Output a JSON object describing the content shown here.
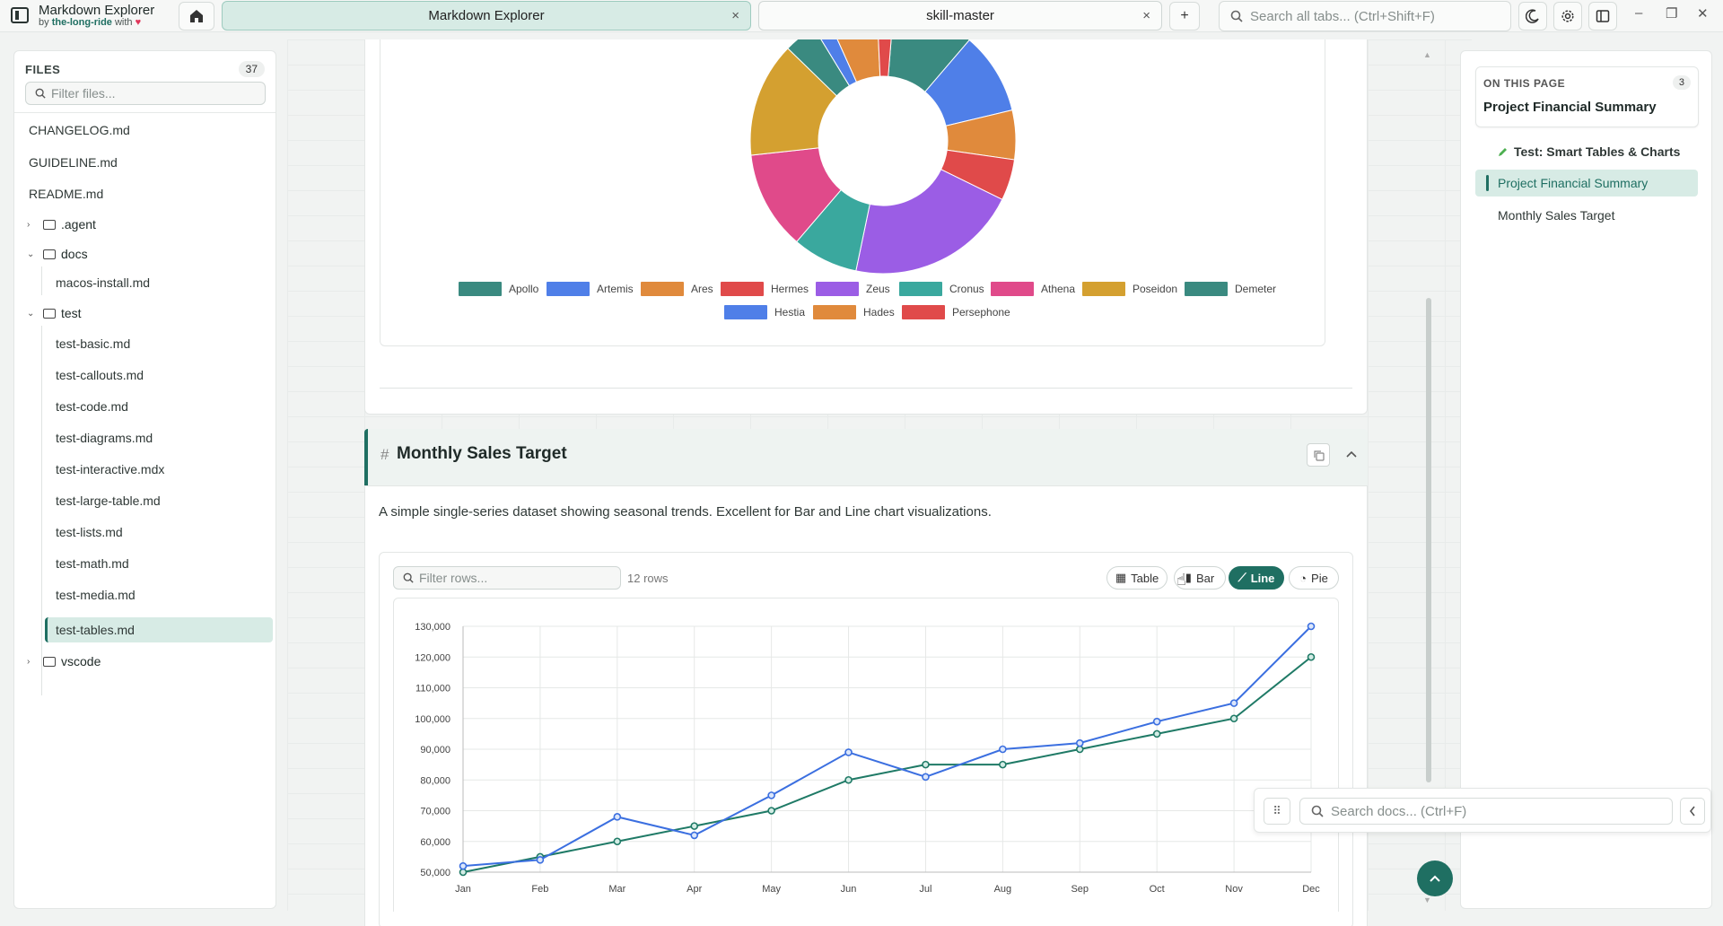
{
  "app": {
    "name": "Markdown Explorer",
    "byline_prefix": "by",
    "byline_brand": "the-long-ride",
    "byline_suffix": "with",
    "heart": "♥"
  },
  "tabs": [
    {
      "label": "Markdown Explorer",
      "active": true
    },
    {
      "label": "skill-master",
      "active": false
    }
  ],
  "titlebar": {
    "search_placeholder": "Search all tabs... (Ctrl+Shift+F)",
    "close_glyph": "×",
    "add_glyph": "+"
  },
  "sidebar": {
    "title": "FILES",
    "count": "37",
    "filter_placeholder": "Filter files...",
    "items": [
      {
        "label": "CHANGELOG.md",
        "type": "file",
        "depth": 0
      },
      {
        "label": "GUIDELINE.md",
        "type": "file",
        "depth": 0
      },
      {
        "label": "README.md",
        "type": "file",
        "depth": 0
      },
      {
        "label": ".agent",
        "type": "folder",
        "depth": 0,
        "expanded": false
      },
      {
        "label": "docs",
        "type": "folder",
        "depth": 0,
        "expanded": true
      },
      {
        "label": "macos-install.md",
        "type": "file",
        "depth": 1
      },
      {
        "label": "test",
        "type": "folder",
        "depth": 0,
        "expanded": true
      },
      {
        "label": "test-basic.md",
        "type": "file",
        "depth": 1
      },
      {
        "label": "test-callouts.md",
        "type": "file",
        "depth": 1
      },
      {
        "label": "test-code.md",
        "type": "file",
        "depth": 1
      },
      {
        "label": "test-diagrams.md",
        "type": "file",
        "depth": 1
      },
      {
        "label": "test-interactive.mdx",
        "type": "file",
        "depth": 1
      },
      {
        "label": "test-large-table.md",
        "type": "file",
        "depth": 1
      },
      {
        "label": "test-lists.md",
        "type": "file",
        "depth": 1
      },
      {
        "label": "test-math.md",
        "type": "file",
        "depth": 1
      },
      {
        "label": "test-media.md",
        "type": "file",
        "depth": 1
      },
      {
        "label": "test-tables.md",
        "type": "file",
        "depth": 1,
        "selected": true
      },
      {
        "label": "vscode",
        "type": "folder",
        "depth": 0,
        "expanded": false
      }
    ]
  },
  "donut_legend": [
    {
      "name": "Apollo",
      "color": "#3a8a80"
    },
    {
      "name": "Artemis",
      "color": "#4f7fe8"
    },
    {
      "name": "Ares",
      "color": "#e08a3c"
    },
    {
      "name": "Hermes",
      "color": "#e04a4a"
    },
    {
      "name": "Zeus",
      "color": "#9b5de5"
    },
    {
      "name": "Cronus",
      "color": "#3aa89e"
    },
    {
      "name": "Athena",
      "color": "#e04a8a"
    },
    {
      "name": "Poseidon",
      "color": "#d4a030"
    },
    {
      "name": "Demeter",
      "color": "#3a8a80"
    },
    {
      "name": "Hestia",
      "color": "#4f7fe8"
    },
    {
      "name": "Hades",
      "color": "#e08a3c"
    },
    {
      "name": "Persephone",
      "color": "#e04a4a"
    }
  ],
  "section": {
    "hash": "#",
    "title": "Monthly Sales Target",
    "description": "A simple single-series dataset showing seasonal trends. Excellent for Bar and Line chart visualizations.",
    "filter_placeholder": "Filter rows...",
    "row_count": "12 rows",
    "views": [
      {
        "label": "Table",
        "icon": "table-icon",
        "glyph": "▦",
        "active": false
      },
      {
        "label": "Bar",
        "icon": "bar-chart-icon",
        "glyph": "▮",
        "active": false
      },
      {
        "label": "Line",
        "icon": "line-chart-icon",
        "glyph": "⟋",
        "active": true
      },
      {
        "label": "Pie",
        "icon": "pie-chart-icon",
        "glyph": "◔",
        "active": false
      }
    ]
  },
  "chart_data": [
    {
      "type": "pie",
      "donut": true,
      "labels": [
        "Apollo",
        "Artemis",
        "Ares",
        "Hermes",
        "Zeus",
        "Cronus",
        "Athena",
        "Poseidon",
        "Demeter",
        "Hestia",
        "Hades",
        "Persephone"
      ],
      "values": [
        10,
        10,
        6,
        5,
        21,
        8,
        12,
        14,
        4,
        2,
        6,
        2
      ],
      "legend_position": "bottom"
    },
    {
      "type": "line",
      "categories": [
        "Jan",
        "Feb",
        "Mar",
        "Apr",
        "May",
        "Jun",
        "Jul",
        "Aug",
        "Sep",
        "Oct",
        "Nov",
        "Dec"
      ],
      "series": [
        {
          "values": [
            52000,
            54000,
            68000,
            62000,
            75000,
            89000,
            81000,
            90000,
            92000,
            99000,
            105000,
            130000
          ],
          "color": "#3b6fe0"
        },
        {
          "values": [
            50000,
            55000,
            60000,
            65000,
            70000,
            80000,
            85000,
            85000,
            90000,
            95000,
            100000,
            120000
          ],
          "color": "#1f7a66"
        }
      ],
      "yticks": [
        "130,000",
        "120,000",
        "110,000",
        "100,000",
        "90,000",
        "80,000",
        "70,000",
        "60,000",
        "50,000"
      ],
      "ylim": [
        50000,
        130000
      ],
      "grid": true
    }
  ],
  "right_panel": {
    "label": "ON THIS PAGE",
    "count": "3",
    "current": "Project Financial Summary",
    "toc": [
      {
        "label": "Test: Smart Tables & Charts",
        "level": 1
      },
      {
        "label": "Project Financial Summary",
        "level": 2,
        "active": true
      },
      {
        "label": "Monthly Sales Target",
        "level": 2
      }
    ]
  },
  "float_search": {
    "placeholder": "Search docs... (Ctrl+F)"
  }
}
